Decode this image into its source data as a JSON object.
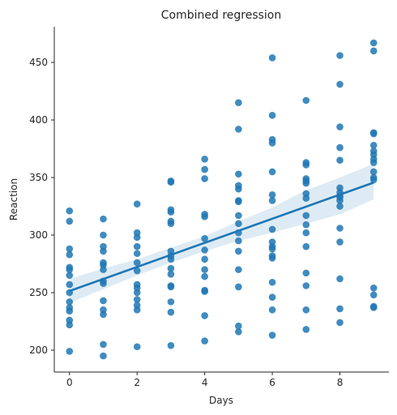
{
  "chart_data": {
    "type": "scatter",
    "title": "Combined regression",
    "xlabel": "Days",
    "ylabel": "Reaction",
    "xlim": [
      -0.45,
      9.45
    ],
    "ylim": [
      181,
      481
    ],
    "xticks": [
      0,
      2,
      4,
      6,
      8
    ],
    "yticks": [
      200,
      250,
      300,
      350,
      400,
      450
    ],
    "grid": false,
    "legend": "none",
    "colors": {
      "points": "#1f77b4",
      "line": "#1f77b4",
      "band": "#1f77b4"
    },
    "points": [
      [
        0,
        321
      ],
      [
        0,
        312
      ],
      [
        0,
        288
      ],
      [
        0,
        283
      ],
      [
        0,
        272
      ],
      [
        0,
        270
      ],
      [
        0,
        265
      ],
      [
        0,
        257
      ],
      [
        0,
        250
      ],
      [
        0,
        242
      ],
      [
        0,
        237
      ],
      [
        0,
        234
      ],
      [
        0,
        226
      ],
      [
        0,
        222
      ],
      [
        0,
        199
      ],
      [
        1,
        314
      ],
      [
        1,
        300
      ],
      [
        1,
        290
      ],
      [
        1,
        286
      ],
      [
        1,
        276
      ],
      [
        1,
        274
      ],
      [
        1,
        270
      ],
      [
        1,
        260
      ],
      [
        1,
        258
      ],
      [
        1,
        243
      ],
      [
        1,
        235
      ],
      [
        1,
        231
      ],
      [
        1,
        205
      ],
      [
        1,
        195
      ],
      [
        2,
        327
      ],
      [
        2,
        302
      ],
      [
        2,
        298
      ],
      [
        2,
        290
      ],
      [
        2,
        284
      ],
      [
        2,
        276
      ],
      [
        2,
        269
      ],
      [
        2,
        257
      ],
      [
        2,
        254
      ],
      [
        2,
        250
      ],
      [
        2,
        244
      ],
      [
        2,
        239
      ],
      [
        2,
        235
      ],
      [
        2,
        203
      ],
      [
        3,
        347
      ],
      [
        3,
        346
      ],
      [
        3,
        322
      ],
      [
        3,
        320
      ],
      [
        3,
        312
      ],
      [
        3,
        310
      ],
      [
        3,
        286
      ],
      [
        3,
        282
      ],
      [
        3,
        279
      ],
      [
        3,
        271
      ],
      [
        3,
        266
      ],
      [
        3,
        256
      ],
      [
        3,
        255
      ],
      [
        3,
        242
      ],
      [
        3,
        233
      ],
      [
        3,
        204
      ],
      [
        4,
        366
      ],
      [
        4,
        357
      ],
      [
        4,
        349
      ],
      [
        4,
        318
      ],
      [
        4,
        316
      ],
      [
        4,
        297
      ],
      [
        4,
        287
      ],
      [
        4,
        279
      ],
      [
        4,
        270
      ],
      [
        4,
        264
      ],
      [
        4,
        252
      ],
      [
        4,
        251
      ],
      [
        4,
        230
      ],
      [
        4,
        208
      ],
      [
        5,
        415
      ],
      [
        5,
        392
      ],
      [
        5,
        353
      ],
      [
        5,
        343
      ],
      [
        5,
        340
      ],
      [
        5,
        330
      ],
      [
        5,
        329
      ],
      [
        5,
        317
      ],
      [
        5,
        310
      ],
      [
        5,
        302
      ],
      [
        5,
        295
      ],
      [
        5,
        286
      ],
      [
        5,
        270
      ],
      [
        5,
        255
      ],
      [
        5,
        221
      ],
      [
        5,
        216
      ],
      [
        6,
        454
      ],
      [
        6,
        404
      ],
      [
        6,
        383
      ],
      [
        6,
        380
      ],
      [
        6,
        355
      ],
      [
        6,
        335
      ],
      [
        6,
        330
      ],
      [
        6,
        305
      ],
      [
        6,
        294
      ],
      [
        6,
        290
      ],
      [
        6,
        288
      ],
      [
        6,
        282
      ],
      [
        6,
        280
      ],
      [
        6,
        259
      ],
      [
        6,
        246
      ],
      [
        6,
        235
      ],
      [
        6,
        213
      ],
      [
        7,
        417
      ],
      [
        7,
        363
      ],
      [
        7,
        361
      ],
      [
        7,
        349
      ],
      [
        7,
        347
      ],
      [
        7,
        345
      ],
      [
        7,
        336
      ],
      [
        7,
        332
      ],
      [
        7,
        317
      ],
      [
        7,
        309
      ],
      [
        7,
        302
      ],
      [
        7,
        290
      ],
      [
        7,
        267
      ],
      [
        7,
        256
      ],
      [
        7,
        235
      ],
      [
        7,
        218
      ],
      [
        8,
        456
      ],
      [
        8,
        431
      ],
      [
        8,
        394
      ],
      [
        8,
        376
      ],
      [
        8,
        365
      ],
      [
        8,
        341
      ],
      [
        8,
        337
      ],
      [
        8,
        334
      ],
      [
        8,
        333
      ],
      [
        8,
        330
      ],
      [
        8,
        325
      ],
      [
        8,
        306
      ],
      [
        8,
        294
      ],
      [
        8,
        262
      ],
      [
        8,
        236
      ],
      [
        8,
        224
      ],
      [
        9,
        467
      ],
      [
        9,
        460
      ],
      [
        9,
        389
      ],
      [
        9,
        388
      ],
      [
        9,
        378
      ],
      [
        9,
        373
      ],
      [
        9,
        370
      ],
      [
        9,
        366
      ],
      [
        9,
        363
      ],
      [
        9,
        355
      ],
      [
        9,
        350
      ],
      [
        9,
        348
      ],
      [
        9,
        254
      ],
      [
        9,
        248
      ],
      [
        9,
        238
      ],
      [
        9,
        237
      ]
    ],
    "regression": {
      "intercept": 251.4,
      "slope": 10.47,
      "x_range": [
        0,
        9
      ]
    },
    "ci_band": {
      "x": [
        0,
        1,
        2,
        3,
        4,
        5,
        6,
        7,
        8,
        9
      ],
      "lower": [
        241,
        253,
        265,
        276,
        286,
        295,
        302,
        310,
        318,
        331
      ],
      "upper": [
        262,
        271,
        279,
        289,
        299,
        312,
        324,
        339,
        350,
        362
      ]
    }
  }
}
